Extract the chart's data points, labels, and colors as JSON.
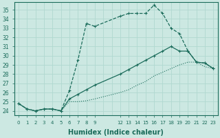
{
  "xlabel": "Humidex (Indice chaleur)",
  "bg_color": "#cce8e2",
  "grid_color": "#b0d8d0",
  "line_color": "#1a6b5a",
  "xlim": [
    -0.5,
    23.5
  ],
  "ylim": [
    23.5,
    35.8
  ],
  "yticks": [
    24,
    25,
    26,
    27,
    28,
    29,
    30,
    31,
    32,
    33,
    34,
    35
  ],
  "lines": [
    {
      "x": [
        0,
        1,
        2,
        3,
        4,
        5,
        6,
        7,
        8,
        9,
        12,
        13,
        14,
        15,
        16,
        17,
        18,
        19,
        20,
        21,
        22,
        23
      ],
      "y": [
        24.8,
        24.2,
        24.0,
        24.2,
        24.2,
        24.0,
        26.2,
        29.5,
        33.5,
        33.2,
        34.3,
        34.6,
        34.6,
        34.6,
        35.5,
        34.6,
        33.0,
        32.4,
        30.5,
        29.3,
        29.2,
        28.6
      ],
      "style": "--",
      "marker": "+"
    },
    {
      "x": [
        0,
        1,
        2,
        3,
        4,
        5,
        6,
        7,
        8,
        9,
        12,
        13,
        14,
        15,
        16,
        17,
        18,
        19,
        20,
        21,
        22,
        23
      ],
      "y": [
        24.8,
        24.2,
        24.0,
        24.2,
        24.2,
        24.0,
        25.3,
        25.8,
        26.3,
        26.8,
        28.0,
        28.5,
        29.0,
        29.5,
        30.0,
        30.5,
        31.0,
        30.5,
        30.5,
        29.3,
        29.2,
        28.6
      ],
      "style": "-",
      "marker": "+"
    },
    {
      "x": [
        0,
        1,
        2,
        3,
        4,
        5,
        6,
        7,
        8,
        9,
        12,
        13,
        14,
        15,
        16,
        17,
        18,
        19,
        20,
        21,
        22,
        23
      ],
      "y": [
        24.8,
        24.2,
        24.0,
        24.2,
        24.2,
        24.0,
        25.0,
        25.0,
        25.1,
        25.3,
        26.0,
        26.3,
        26.8,
        27.2,
        27.8,
        28.2,
        28.6,
        29.0,
        29.3,
        29.3,
        28.8,
        28.6
      ],
      "style": ":",
      "marker": null
    }
  ]
}
